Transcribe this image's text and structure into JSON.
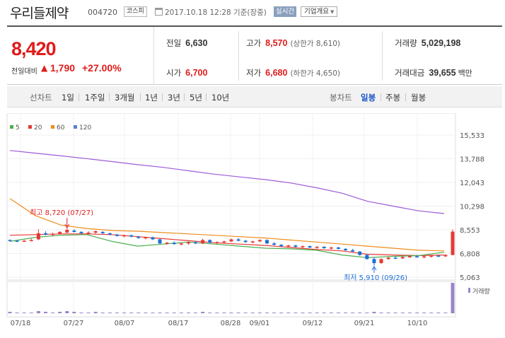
{
  "header": {
    "stock_name": "우리들제약",
    "stock_code": "004720",
    "market": "코스피",
    "timestamp": "2017.10.18 12:28 기준(장중)",
    "realtime": "실시간",
    "company_overview": "기업개요"
  },
  "quote": {
    "price": "8,420",
    "diff_label": "전일대비",
    "diff_arrow": "▲",
    "diff_value": "1,790",
    "diff_rate": "+27.00%",
    "prev_close_label": "전일",
    "prev_close": "6,630",
    "high_label": "고가",
    "high": "8,570",
    "upper_limit": "(상한가 8,610)",
    "volume_label": "거래량",
    "volume": "5,029,198",
    "open_label": "시가",
    "open": "6,700",
    "low_label": "저가",
    "low": "6,680",
    "lower_limit": "(하한가 4,650)",
    "amount_label": "거래대금",
    "amount": "39,655",
    "amount_unit": "백만"
  },
  "periods": {
    "line_chart": "선차트",
    "items": [
      "1일",
      "1주일",
      "3개월",
      "1년",
      "3년",
      "5년",
      "10년"
    ],
    "candle_chart": "봉차트",
    "candle_items": [
      "일봉",
      "주봉",
      "월봉"
    ],
    "active_candle": "일봉"
  },
  "chart_data": {
    "type": "candlestick",
    "legend": [
      {
        "name": "5",
        "color": "#4caf50"
      },
      {
        "name": "20",
        "color": "#e53935"
      },
      {
        "name": "60",
        "color": "#ef8c1a"
      },
      {
        "name": "120",
        "color": "#5b7fd1"
      }
    ],
    "y_ticks": [
      "15,533",
      "13,788",
      "12,043",
      "10,298",
      "8,553",
      "6,808",
      "5,063"
    ],
    "ylim": [
      5063,
      15533
    ],
    "x_ticks": [
      "07/18",
      "07/27",
      "08/07",
      "08/17",
      "08/28",
      "09/01",
      "09/12",
      "09/21",
      "10/10"
    ],
    "high_annotation": "최고 8,720 (07/27)",
    "low_annotation": "최저 5,910 (09/26)",
    "volume_label": "거래량",
    "colors": {
      "up": "#e53935",
      "down": "#1e6fd9",
      "ma5": "#4caf50",
      "ma20": "#e53935",
      "ma60": "#ef8c1a",
      "ma120": "#9c5bd6",
      "volume": "#9b84c9"
    },
    "series": [
      {
        "name": "120",
        "values": [
          14400,
          14200,
          14000,
          13800,
          13580,
          13350,
          13150,
          12900,
          12650,
          12450,
          12250,
          12000,
          11650,
          11250,
          10650,
          10300,
          9950,
          9750
        ]
      },
      {
        "name": "60",
        "values": [
          10850,
          9600,
          8900,
          8650,
          8500,
          8450,
          8350,
          8250,
          8150,
          8050,
          7950,
          7800,
          7650,
          7500,
          7350,
          7200,
          7050,
          7000
        ]
      },
      {
        "name": "20",
        "values": [
          8150,
          8200,
          8250,
          8250,
          8200,
          8050,
          7900,
          7750,
          7600,
          7500,
          7400,
          7250,
          7100,
          7000,
          6750,
          6700,
          6650,
          6700
        ]
      },
      {
        "name": "5",
        "values": [
          7700,
          8000,
          8150,
          8200,
          7700,
          7350,
          7500,
          7650,
          7500,
          7350,
          7200,
          7150,
          7050,
          6700,
          6500,
          6600,
          6650,
          6900
        ]
      }
    ],
    "candles": [
      [
        7800,
        7850,
        7700,
        7750
      ],
      [
        7750,
        7800,
        7650,
        7700
      ],
      [
        7700,
        7800,
        7650,
        7750
      ],
      [
        7750,
        7900,
        7700,
        7800
      ],
      [
        7850,
        8600,
        7800,
        8300
      ],
      [
        8300,
        8450,
        8150,
        8200
      ],
      [
        8200,
        8350,
        8100,
        8250
      ],
      [
        8250,
        8450,
        8200,
        8400
      ],
      [
        8350,
        8720,
        8300,
        8550
      ],
      [
        8500,
        8600,
        8350,
        8400
      ],
      [
        8400,
        8450,
        8250,
        8300
      ],
      [
        8300,
        8450,
        8200,
        8350
      ],
      [
        8350,
        8500,
        8250,
        8450
      ],
      [
        8400,
        8450,
        8250,
        8300
      ],
      [
        8300,
        8350,
        8150,
        8200
      ],
      [
        8200,
        8250,
        8050,
        8100
      ],
      [
        8100,
        8200,
        8000,
        8150
      ],
      [
        8150,
        8200,
        8000,
        8050
      ],
      [
        8050,
        8100,
        7900,
        7950
      ],
      [
        7950,
        8050,
        7850,
        8000
      ],
      [
        8000,
        8050,
        7800,
        7850
      ],
      [
        7850,
        7900,
        7500,
        7550
      ],
      [
        7550,
        7650,
        7450,
        7600
      ],
      [
        7600,
        7700,
        7450,
        7500
      ],
      [
        7500,
        7600,
        7400,
        7550
      ],
      [
        7550,
        7700,
        7450,
        7650
      ],
      [
        7650,
        7700,
        7500,
        7550
      ],
      [
        7550,
        7900,
        7500,
        7800
      ],
      [
        7800,
        7850,
        7550,
        7600
      ],
      [
        7600,
        7700,
        7500,
        7650
      ],
      [
        7650,
        7750,
        7550,
        7700
      ],
      [
        7700,
        7900,
        7650,
        7850
      ],
      [
        7850,
        7950,
        7700,
        7750
      ],
      [
        7750,
        7800,
        7600,
        7650
      ],
      [
        7650,
        7750,
        7550,
        7700
      ],
      [
        7700,
        7850,
        7650,
        7800
      ],
      [
        7800,
        7850,
        7500,
        7550
      ],
      [
        7550,
        7650,
        7400,
        7450
      ],
      [
        7450,
        7500,
        7300,
        7350
      ],
      [
        7350,
        7450,
        7250,
        7400
      ],
      [
        7400,
        7450,
        7250,
        7300
      ],
      [
        7300,
        7400,
        7200,
        7350
      ],
      [
        7350,
        7400,
        7200,
        7250
      ],
      [
        7250,
        7350,
        7150,
        7300
      ],
      [
        7300,
        7350,
        7150,
        7200
      ],
      [
        7200,
        7300,
        7100,
        7250
      ],
      [
        7250,
        7300,
        7100,
        7150
      ],
      [
        7150,
        7200,
        7000,
        7050
      ],
      [
        7050,
        7150,
        6900,
        6950
      ],
      [
        6950,
        7000,
        6650,
        6700
      ],
      [
        6700,
        6750,
        6350,
        6400
      ],
      [
        6400,
        6550,
        5910,
        6100
      ],
      [
        6100,
        6450,
        6050,
        6400
      ],
      [
        6400,
        6550,
        6350,
        6500
      ],
      [
        6500,
        6600,
        6400,
        6450
      ],
      [
        6450,
        6600,
        6400,
        6550
      ],
      [
        6550,
        6700,
        6500,
        6600
      ],
      [
        6600,
        6700,
        6500,
        6550
      ],
      [
        6550,
        6650,
        6450,
        6600
      ],
      [
        6600,
        6700,
        6500,
        6650
      ],
      [
        6650,
        6700,
        6550,
        6600
      ],
      [
        6600,
        6750,
        6550,
        6700
      ],
      [
        6700,
        8570,
        6680,
        8420
      ]
    ],
    "volumes": [
      2,
      1,
      1,
      1,
      3,
      2,
      1,
      2,
      3,
      2,
      1,
      1,
      2,
      1,
      1,
      1,
      1,
      1,
      1,
      1,
      1,
      1,
      1,
      1,
      1,
      1,
      1,
      2,
      1,
      1,
      1,
      1,
      1,
      1,
      1,
      1,
      1,
      1,
      1,
      1,
      1,
      1,
      1,
      1,
      1,
      1,
      1,
      1,
      1,
      1,
      1,
      2,
      1,
      1,
      1,
      1,
      1,
      1,
      1,
      1,
      1,
      1,
      42
    ]
  }
}
